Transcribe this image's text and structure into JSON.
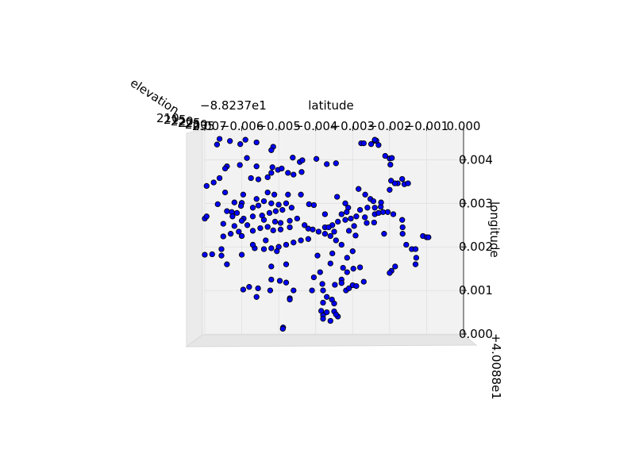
{
  "chart_data": {
    "type": "scatter",
    "projection": "3d",
    "xlabel": "latitude",
    "ylabel": "longitude",
    "zlabel": "elevation",
    "x_offset_text": "−8.8237e1",
    "y_offset_text": "+4.0088e1",
    "x_tick_labels": [
      "−0.007",
      "−0.006",
      "−0.005",
      "−0.004",
      "−0.003",
      "−0.002",
      "−0.001",
      "0.000"
    ],
    "y_tick_labels": [
      "0.000",
      "0.001",
      "0.002",
      "0.003",
      "0.004"
    ],
    "z_tick_labels": [
      "210",
      "215",
      "220",
      "225",
      "230",
      "235"
    ],
    "xlim": [
      -0.007,
      0.0
    ],
    "ylim": [
      0.0,
      0.0047
    ],
    "marker_color": "#0000ff",
    "marker_edge_color": "#000000",
    "grid": true,
    "points": [
      [
        -0.0066,
        0.00448
      ],
      [
        -0.00632,
        0.00443
      ],
      [
        -0.00604,
        0.00436
      ],
      [
        -0.00667,
        0.00435
      ],
      [
        -0.0059,
        0.00446
      ],
      [
        -0.0056,
        0.0044
      ],
      [
        -0.00515,
        0.0043
      ],
      [
        -0.0052,
        0.00422
      ],
      [
        -0.00462,
        0.00405
      ],
      [
        -0.00443,
        0.00395
      ],
      [
        -0.00436,
        0.00399
      ],
      [
        -0.00398,
        0.00402
      ],
      [
        -0.0037,
        0.0039
      ],
      [
        -0.00345,
        0.00392
      ],
      [
        -0.00277,
        0.00438
      ],
      [
        -0.0027,
        0.00438
      ],
      [
        -0.0024,
        0.00444
      ],
      [
        -0.00236,
        0.00444
      ],
      [
        -0.0023,
        0.00434
      ],
      [
        -0.0025,
        0.00436
      ],
      [
        -0.0024,
        0.00446
      ],
      [
        -0.00212,
        0.00409
      ],
      [
        -0.002,
        0.00403
      ],
      [
        -0.00194,
        0.00404
      ],
      [
        -0.00198,
        0.00389
      ],
      [
        -0.00166,
        0.00356
      ],
      [
        -0.00178,
        0.00346
      ],
      [
        -0.00186,
        0.00346
      ],
      [
        -0.00196,
        0.00352
      ],
      [
        -0.0016,
        0.00344
      ],
      [
        -0.0015,
        0.00346
      ],
      [
        -0.002,
        0.00331
      ],
      [
        -0.00586,
        0.00404
      ],
      [
        -0.0056,
        0.00385
      ],
      [
        -0.00517,
        0.00383
      ],
      [
        -0.00502,
        0.00377
      ],
      [
        -0.00492,
        0.0038
      ],
      [
        -0.0052,
        0.0037
      ],
      [
        -0.00438,
        0.00372
      ],
      [
        -0.0046,
        0.00366
      ],
      [
        -0.00475,
        0.0037
      ],
      [
        -0.0053,
        0.0036
      ],
      [
        -0.00555,
        0.00355
      ],
      [
        -0.00575,
        0.00358
      ],
      [
        -0.00605,
        0.00388
      ],
      [
        -0.0064,
        0.00385
      ],
      [
        -0.00645,
        0.0038
      ],
      [
        -0.0066,
        0.00358
      ],
      [
        -0.00676,
        0.00348
      ],
      [
        -0.00695,
        0.0034
      ],
      [
        -0.00645,
        0.00325
      ],
      [
        -0.00596,
        0.0032
      ],
      [
        -0.0056,
        0.0031
      ],
      [
        -0.0053,
        0.00325
      ],
      [
        -0.00512,
        0.0032
      ],
      [
        -0.00475,
        0.0032
      ],
      [
        -0.0044,
        0.0032
      ],
      [
        -0.00418,
        0.00298
      ],
      [
        -0.00405,
        0.00296
      ],
      [
        -0.006,
        0.00301
      ],
      [
        -0.0062,
        0.00302
      ],
      [
        -0.00627,
        0.0028
      ],
      [
        -0.00602,
        0.00294
      ],
      [
        -0.00613,
        0.00278
      ],
      [
        -0.0057,
        0.0029
      ],
      [
        -0.00555,
        0.00295
      ],
      [
        -0.0054,
        0.00305
      ],
      [
        -0.0052,
        0.003
      ],
      [
        -0.005,
        0.00297
      ],
      [
        -0.0048,
        0.003
      ],
      [
        -0.00465,
        0.0029
      ],
      [
        -0.0049,
        0.00285
      ],
      [
        -0.00508,
        0.00282
      ],
      [
        -0.00525,
        0.00278
      ],
      [
        -0.00545,
        0.00272
      ],
      [
        -0.0057,
        0.0027
      ],
      [
        -0.00595,
        0.00265
      ],
      [
        -0.00625,
        0.0027
      ],
      [
        -0.0064,
        0.00282
      ],
      [
        -0.00665,
        0.00298
      ],
      [
        -0.007,
        0.00265
      ],
      [
        -0.00695,
        0.0027
      ],
      [
        -0.0065,
        0.00253
      ],
      [
        -0.0062,
        0.00248
      ],
      [
        -0.006,
        0.0026
      ],
      [
        -0.00585,
        0.0025
      ],
      [
        -0.0054,
        0.00262
      ],
      [
        -0.0051,
        0.00258
      ],
      [
        -0.00495,
        0.00255
      ],
      [
        -0.0047,
        0.0026
      ],
      [
        -0.0045,
        0.00265
      ],
      [
        -0.0043,
        0.0025
      ],
      [
        -0.0042,
        0.00242
      ],
      [
        -0.0047,
        0.00245
      ],
      [
        -0.00495,
        0.0024
      ],
      [
        -0.00515,
        0.00238
      ],
      [
        -0.0053,
        0.00246
      ],
      [
        -0.0055,
        0.00243
      ],
      [
        -0.0057,
        0.00237
      ],
      [
        -0.00608,
        0.00235
      ],
      [
        -0.0063,
        0.0023
      ],
      [
        -0.0065,
        0.00224
      ],
      [
        -0.0042,
        0.00218
      ],
      [
        -0.0044,
        0.00215
      ],
      [
        -0.0046,
        0.0021
      ],
      [
        -0.0048,
        0.00205
      ],
      [
        -0.005,
        0.002
      ],
      [
        -0.0052,
        0.00197
      ],
      [
        -0.0054,
        0.00195
      ],
      [
        -0.00565,
        0.00197
      ],
      [
        -0.00505,
        0.0019
      ],
      [
        -0.00655,
        0.00195
      ],
      [
        -0.007,
        0.00182
      ],
      [
        -0.0068,
        0.00183
      ],
      [
        -0.00655,
        0.0018
      ],
      [
        -0.006,
        0.00182
      ],
      [
        -0.0064,
        0.0016
      ],
      [
        -0.0052,
        0.00125
      ],
      [
        -0.00497,
        0.00122
      ],
      [
        -0.0048,
        0.00118
      ],
      [
        -0.00556,
        0.00105
      ],
      [
        -0.0058,
        0.00108
      ],
      [
        -0.00596,
        0.00102
      ],
      [
        -0.0056,
        0.00085
      ],
      [
        -0.00523,
        0.001
      ],
      [
        -0.0047,
        0.00082
      ],
      [
        -0.0047,
        0.00079
      ],
      [
        -0.00488,
        0.00015
      ],
      [
        -0.00489,
        0.00012
      ],
      [
        -0.0038,
        0.00043
      ],
      [
        -0.0037,
        0.0005
      ],
      [
        -0.0035,
        0.00052
      ],
      [
        -0.0034,
        0.0004
      ],
      [
        -0.0036,
        0.0003
      ],
      [
        -0.0038,
        0.00035
      ],
      [
        -0.00385,
        0.00053
      ],
      [
        -0.0038,
        0.00072
      ],
      [
        -0.0037,
        0.00085
      ],
      [
        -0.0038,
        0.001
      ],
      [
        -0.00382,
        0.00115
      ],
      [
        -0.00388,
        0.00142
      ],
      [
        -0.0036,
        0.00162
      ],
      [
        -0.0033,
        0.00125
      ],
      [
        -0.00315,
        0.00142
      ],
      [
        -0.0028,
        0.00153
      ],
      [
        -0.00298,
        0.0015
      ],
      [
        -0.00326,
        0.00152
      ],
      [
        -0.00318,
        0.001
      ],
      [
        -0.0031,
        0.00105
      ],
      [
        -0.00315,
        0.00175
      ],
      [
        -0.00355,
        0.00185
      ],
      [
        -0.003,
        0.0019
      ],
      [
        -0.0033,
        0.00205
      ],
      [
        -0.00345,
        0.00215
      ],
      [
        -0.0036,
        0.00225
      ],
      [
        -0.00375,
        0.0023
      ],
      [
        -0.00392,
        0.00235
      ],
      [
        -0.00408,
        0.0024
      ],
      [
        -0.00375,
        0.00245
      ],
      [
        -0.00355,
        0.0025
      ],
      [
        -0.0034,
        0.00258
      ],
      [
        -0.0032,
        0.00262
      ],
      [
        -0.00305,
        0.00265
      ],
      [
        -0.0029,
        0.0027
      ],
      [
        -0.0028,
        0.00285
      ],
      [
        -0.0026,
        0.0029
      ],
      [
        -0.0024,
        0.0029
      ],
      [
        -0.00224,
        0.00292
      ],
      [
        -0.00218,
        0.0028
      ],
      [
        -0.00205,
        0.0028
      ],
      [
        -0.0019,
        0.00275
      ],
      [
        -0.00166,
        0.00262
      ],
      [
        -0.00165,
        0.00245
      ],
      [
        -0.0011,
        0.00225
      ],
      [
        -0.001,
        0.00222
      ],
      [
        -0.00095,
        0.00222
      ],
      [
        -0.00165,
        0.0023
      ],
      [
        -0.00155,
        0.00205
      ],
      [
        -0.0014,
        0.00195
      ],
      [
        -0.0013,
        0.00195
      ],
      [
        -0.00128,
        0.00175
      ],
      [
        -0.0013,
        0.0016
      ],
      [
        -0.00185,
        0.00155
      ],
      [
        -0.00195,
        0.00145
      ],
      [
        -0.002,
        0.0014
      ],
      [
        -0.0035,
        0.0007
      ],
      [
        -0.00345,
        0.00045
      ],
      [
        -0.0024,
        0.00275
      ],
      [
        -0.0023,
        0.00278
      ],
      [
        -0.00312,
        0.0029
      ],
      [
        -0.00316,
        0.0028
      ],
      [
        -0.0033,
        0.00275
      ],
      [
        -0.0032,
        0.003
      ],
      [
        -0.00342,
        0.00315
      ],
      [
        -0.00252,
        0.0031
      ],
      [
        -0.00266,
        0.0032
      ],
      [
        -0.00284,
        0.00333
      ],
      [
        -0.00244,
        0.00305
      ],
      [
        -0.00223,
        0.00302
      ],
      [
        -0.00375,
        0.00275
      ],
      [
        -0.00365,
        0.00245
      ],
      [
        -0.0035,
        0.00235
      ],
      [
        -0.0031,
        0.00237
      ],
      [
        -0.00296,
        0.00248
      ],
      [
        -0.00292,
        0.00226
      ],
      [
        -0.00262,
        0.00255
      ],
      [
        -0.00267,
        0.00268
      ],
      [
        -0.00242,
        0.00256
      ],
      [
        -0.00215,
        0.0023
      ],
      [
        -0.003,
        0.00112
      ],
      [
        -0.0029,
        0.0011
      ],
      [
        -0.0027,
        0.0012
      ],
      [
        -0.0033,
        0.00117
      ],
      [
        -0.00348,
        0.00113
      ],
      [
        -0.00356,
        0.00079
      ],
      [
        -0.006,
        0.00225
      ],
      [
        -0.0057,
        0.00205
      ],
      [
        -0.00535,
        0.00215
      ],
      [
        -0.0052,
        0.00155
      ],
      [
        -0.0048,
        0.0016
      ],
      [
        -0.0046,
        0.001
      ],
      [
        -0.0041,
        0.001
      ],
      [
        -0.00395,
        0.0018
      ],
      [
        -0.00405,
        0.0013
      ]
    ]
  }
}
